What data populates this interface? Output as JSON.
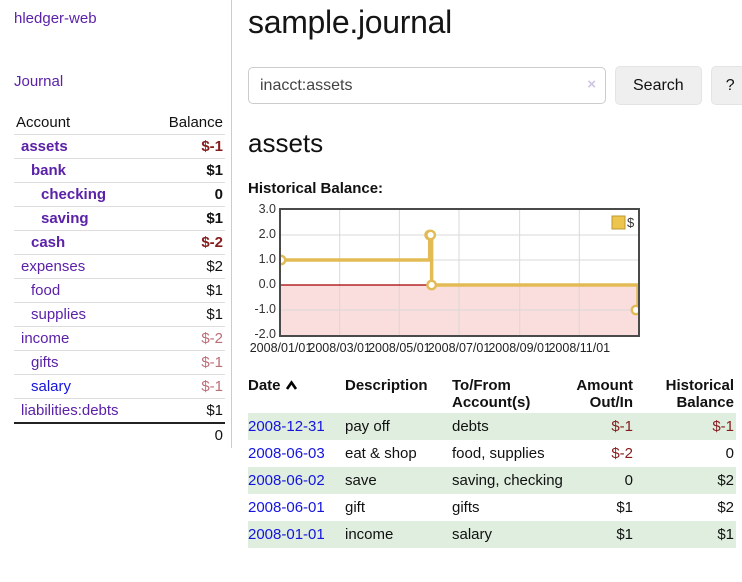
{
  "colors": {
    "link_purple": "#5b21a8",
    "link_blue": "#1414dd",
    "negative_strong": "#861c1c",
    "negative_muted": "#bd6d76",
    "row_stripe_green": "#dfeede",
    "chart_gold": "#e2bb55",
    "chart_gold_fill": "#ecc44e",
    "chart_gold_border": "#bd9730",
    "chart_negative_pink": "#fadddd",
    "chart_zero_red": "#a40000",
    "chart_grid": "#d9d9d9"
  },
  "sidebar": {
    "brand": "hledger-web",
    "nav_journal": "Journal",
    "accounts": {
      "col_account": "Account",
      "col_balance": "Balance",
      "rows": [
        {
          "account": "assets",
          "depth": 1,
          "bold": true,
          "blue": false,
          "balance": "$-1",
          "balance_style": "negative-strong"
        },
        {
          "account": "bank",
          "depth": 2,
          "bold": true,
          "blue": false,
          "balance": "$1",
          "balance_style": "normal"
        },
        {
          "account": "checking",
          "depth": 3,
          "bold": true,
          "blue": false,
          "balance": "0",
          "balance_style": "normal"
        },
        {
          "account": "saving",
          "depth": 3,
          "bold": true,
          "blue": false,
          "balance": "$1",
          "balance_style": "normal"
        },
        {
          "account": "cash",
          "depth": 2,
          "bold": true,
          "blue": false,
          "balance": "$-2",
          "balance_style": "negative-strong"
        },
        {
          "account": "expenses",
          "depth": 1,
          "bold": false,
          "blue": false,
          "balance": "$2",
          "balance_style": "normal"
        },
        {
          "account": "food",
          "depth": 2,
          "bold": false,
          "blue": false,
          "balance": "$1",
          "balance_style": "normal"
        },
        {
          "account": "supplies",
          "depth": 2,
          "bold": false,
          "blue": false,
          "balance": "$1",
          "balance_style": "normal"
        },
        {
          "account": "income",
          "depth": 1,
          "bold": false,
          "blue": false,
          "balance": "$-2",
          "balance_style": "negative-muted"
        },
        {
          "account": "gifts",
          "depth": 2,
          "bold": false,
          "blue": false,
          "balance": "$-1",
          "balance_style": "negative-muted"
        },
        {
          "account": "salary",
          "depth": 2,
          "bold": false,
          "blue": true,
          "balance": "$-1",
          "balance_style": "negative-muted"
        },
        {
          "account": "liabilities:debts",
          "depth": 1,
          "bold": false,
          "blue": false,
          "balance": "$1",
          "balance_style": "normal"
        }
      ],
      "total": "0"
    }
  },
  "main": {
    "title": "sample.journal",
    "search": {
      "value": "inacct:assets",
      "clear": "×",
      "search_button": "Search",
      "help_button": "?"
    },
    "account_heading": "assets",
    "section_label": "Historical Balance:"
  },
  "chart_data": {
    "type": "line",
    "step": "after",
    "title": "Historical Balance",
    "x_start": "2008-01-01",
    "x_end": "2008-12-31",
    "ylim": [
      -2,
      3
    ],
    "y_ticks": [
      3,
      2,
      1,
      0,
      -1,
      -2
    ],
    "y_tick_labels": [
      "3.0",
      "2.0",
      "1.0",
      "0.0",
      "-1.0",
      "-2.0"
    ],
    "x_ticks": [
      "2008-01-01",
      "2008-03-01",
      "2008-05-01",
      "2008-07-01",
      "2008-09-01",
      "2008-11-01"
    ],
    "x_tick_labels": [
      "2008/01/01",
      "2008/03/01",
      "2008/05/01",
      "2008/07/01",
      "2008/09/01",
      "2008/11/01"
    ],
    "legend": [
      {
        "label": "$",
        "position": "top-right"
      }
    ],
    "negative_region_shaded": true,
    "series": [
      {
        "name": "$",
        "points": [
          {
            "x": "2008-01-01",
            "y": 1
          },
          {
            "x": "2008-06-01",
            "y": 2
          },
          {
            "x": "2008-06-02",
            "y": 2
          },
          {
            "x": "2008-06-03",
            "y": 0
          },
          {
            "x": "2008-12-31",
            "y": -1
          }
        ]
      }
    ]
  },
  "register": {
    "headers": {
      "date": "Date",
      "description": "Description",
      "accounts": "To/From Account(s)",
      "amount": "Amount Out/In",
      "balance": "Historical Balance"
    },
    "rows": [
      {
        "date": "2008-12-31",
        "description": "pay off",
        "accounts": "debts",
        "amount": "$-1",
        "amount_neg": true,
        "balance": "$-1",
        "balance_neg": true,
        "stripe": true
      },
      {
        "date": "2008-06-03",
        "description": "eat & shop",
        "accounts": "food, supplies",
        "amount": "$-2",
        "amount_neg": true,
        "balance": "0",
        "balance_neg": false,
        "stripe": false
      },
      {
        "date": "2008-06-02",
        "description": "save",
        "accounts": "saving, checking",
        "amount": "0",
        "amount_neg": false,
        "balance": "$2",
        "balance_neg": false,
        "stripe": true
      },
      {
        "date": "2008-06-01",
        "description": "gift",
        "accounts": "gifts",
        "amount": "$1",
        "amount_neg": false,
        "balance": "$2",
        "balance_neg": false,
        "stripe": false
      },
      {
        "date": "2008-01-01",
        "description": "income",
        "accounts": "salary",
        "amount": "$1",
        "amount_neg": false,
        "balance": "$1",
        "balance_neg": false,
        "stripe": true
      }
    ]
  }
}
